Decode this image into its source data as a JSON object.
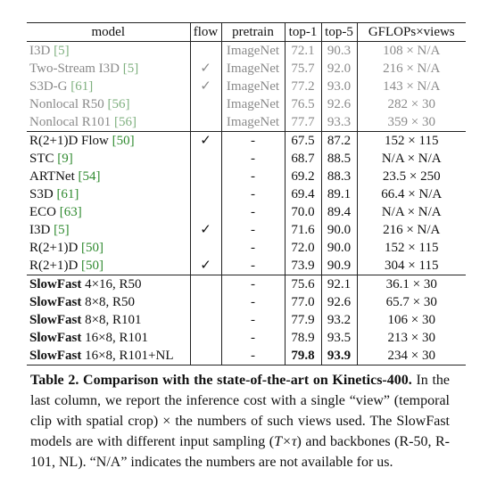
{
  "table": {
    "columns": [
      "model",
      "flow",
      "pretrain",
      "top-1",
      "top-5",
      "GFLOPs×views"
    ],
    "groups": [
      {
        "muted": true,
        "rows": [
          {
            "model": "I3D",
            "cite": "[5]",
            "pretrain": "ImageNet",
            "top1": "72.1",
            "top5": "90.3",
            "cost": "108 × N/A"
          },
          {
            "model": "Two-Stream I3D",
            "cite": "[5]",
            "flow": "✓",
            "pretrain": "ImageNet",
            "top1": "75.7",
            "top5": "92.0",
            "cost": "216 × N/A"
          },
          {
            "model": "S3D-G",
            "cite": "[61]",
            "flow": "✓",
            "pretrain": "ImageNet",
            "top1": "77.2",
            "top5": "93.0",
            "cost": "143 × N/A"
          },
          {
            "model": "Nonlocal R50",
            "cite": "[56]",
            "pretrain": "ImageNet",
            "top1": "76.5",
            "top5": "92.6",
            "cost": "282 × 30"
          },
          {
            "model": "Nonlocal R101",
            "cite": "[56]",
            "pretrain": "ImageNet",
            "top1": "77.7",
            "top5": "93.3",
            "cost": "359 × 30"
          }
        ]
      },
      {
        "muted": false,
        "rows": [
          {
            "model": "R(2+1)D Flow",
            "cite": "[50]",
            "flow": "✓",
            "pretrain": "-",
            "top1": "67.5",
            "top5": "87.2",
            "cost": "152 × 115"
          },
          {
            "model": "STC",
            "cite": "[9]",
            "pretrain": "-",
            "top1": "68.7",
            "top5": "88.5",
            "cost": "N/A × N/A"
          },
          {
            "model": "ARTNet",
            "cite": "[54]",
            "pretrain": "-",
            "top1": "69.2",
            "top5": "88.3",
            "cost": "23.5 × 250"
          },
          {
            "model": "S3D",
            "cite": "[61]",
            "pretrain": "-",
            "top1": "69.4",
            "top5": "89.1",
            "cost": "66.4 × N/A"
          },
          {
            "model": "ECO",
            "cite": "[63]",
            "pretrain": "-",
            "top1": "70.0",
            "top5": "89.4",
            "cost": "N/A × N/A"
          },
          {
            "model": "I3D",
            "cite": "[5]",
            "flow": "✓",
            "pretrain": "-",
            "top1": "71.6",
            "top5": "90.0",
            "cost": "216 × N/A"
          },
          {
            "model": "R(2+1)D",
            "cite": "[50]",
            "pretrain": "-",
            "top1": "72.0",
            "top5": "90.0",
            "cost": "152 × 115"
          },
          {
            "model": "R(2+1)D",
            "cite": "[50]",
            "flow": "✓",
            "pretrain": "-",
            "top1": "73.9",
            "top5": "90.9",
            "cost": "304 × 115"
          }
        ]
      },
      {
        "muted": false,
        "rows": [
          {
            "model_bold": "SlowFast",
            "model": "4×16, R50",
            "pretrain": "-",
            "top1": "75.6",
            "top5": "92.1",
            "cost": "36.1 × 30"
          },
          {
            "model_bold": "SlowFast",
            "model": "8×8, R50",
            "pretrain": "-",
            "top1": "77.0",
            "top5": "92.6",
            "cost": "65.7 × 30"
          },
          {
            "model_bold": "SlowFast",
            "model": "8×8, R101",
            "pretrain": "-",
            "top1": "77.9",
            "top5": "93.2",
            "cost": "106 × 30"
          },
          {
            "model_bold": "SlowFast",
            "model": "16×8, R101",
            "pretrain": "-",
            "top1": "78.9",
            "top5": "93.5",
            "cost": "213 × 30"
          },
          {
            "model_bold": "SlowFast",
            "model": "16×8, R101+NL",
            "pretrain": "-",
            "top1": "79.8",
            "top5": "93.9",
            "cost": "234 × 30",
            "best": [
              "top1",
              "top5"
            ]
          }
        ]
      }
    ]
  },
  "caption": {
    "label": "Table 2.",
    "title": "Comparison with the state-of-the-art on Kinetics-400.",
    "body": [
      "In the last column, we report the inference cost with a single “view” (temporal clip with spatial crop) × the numbers of such views used. The SlowFast models are with different input sampling (",
      "T×τ",
      ") and backbones (R-50, R-101, NL). “N/A” indicates the numbers are not available for us."
    ]
  }
}
